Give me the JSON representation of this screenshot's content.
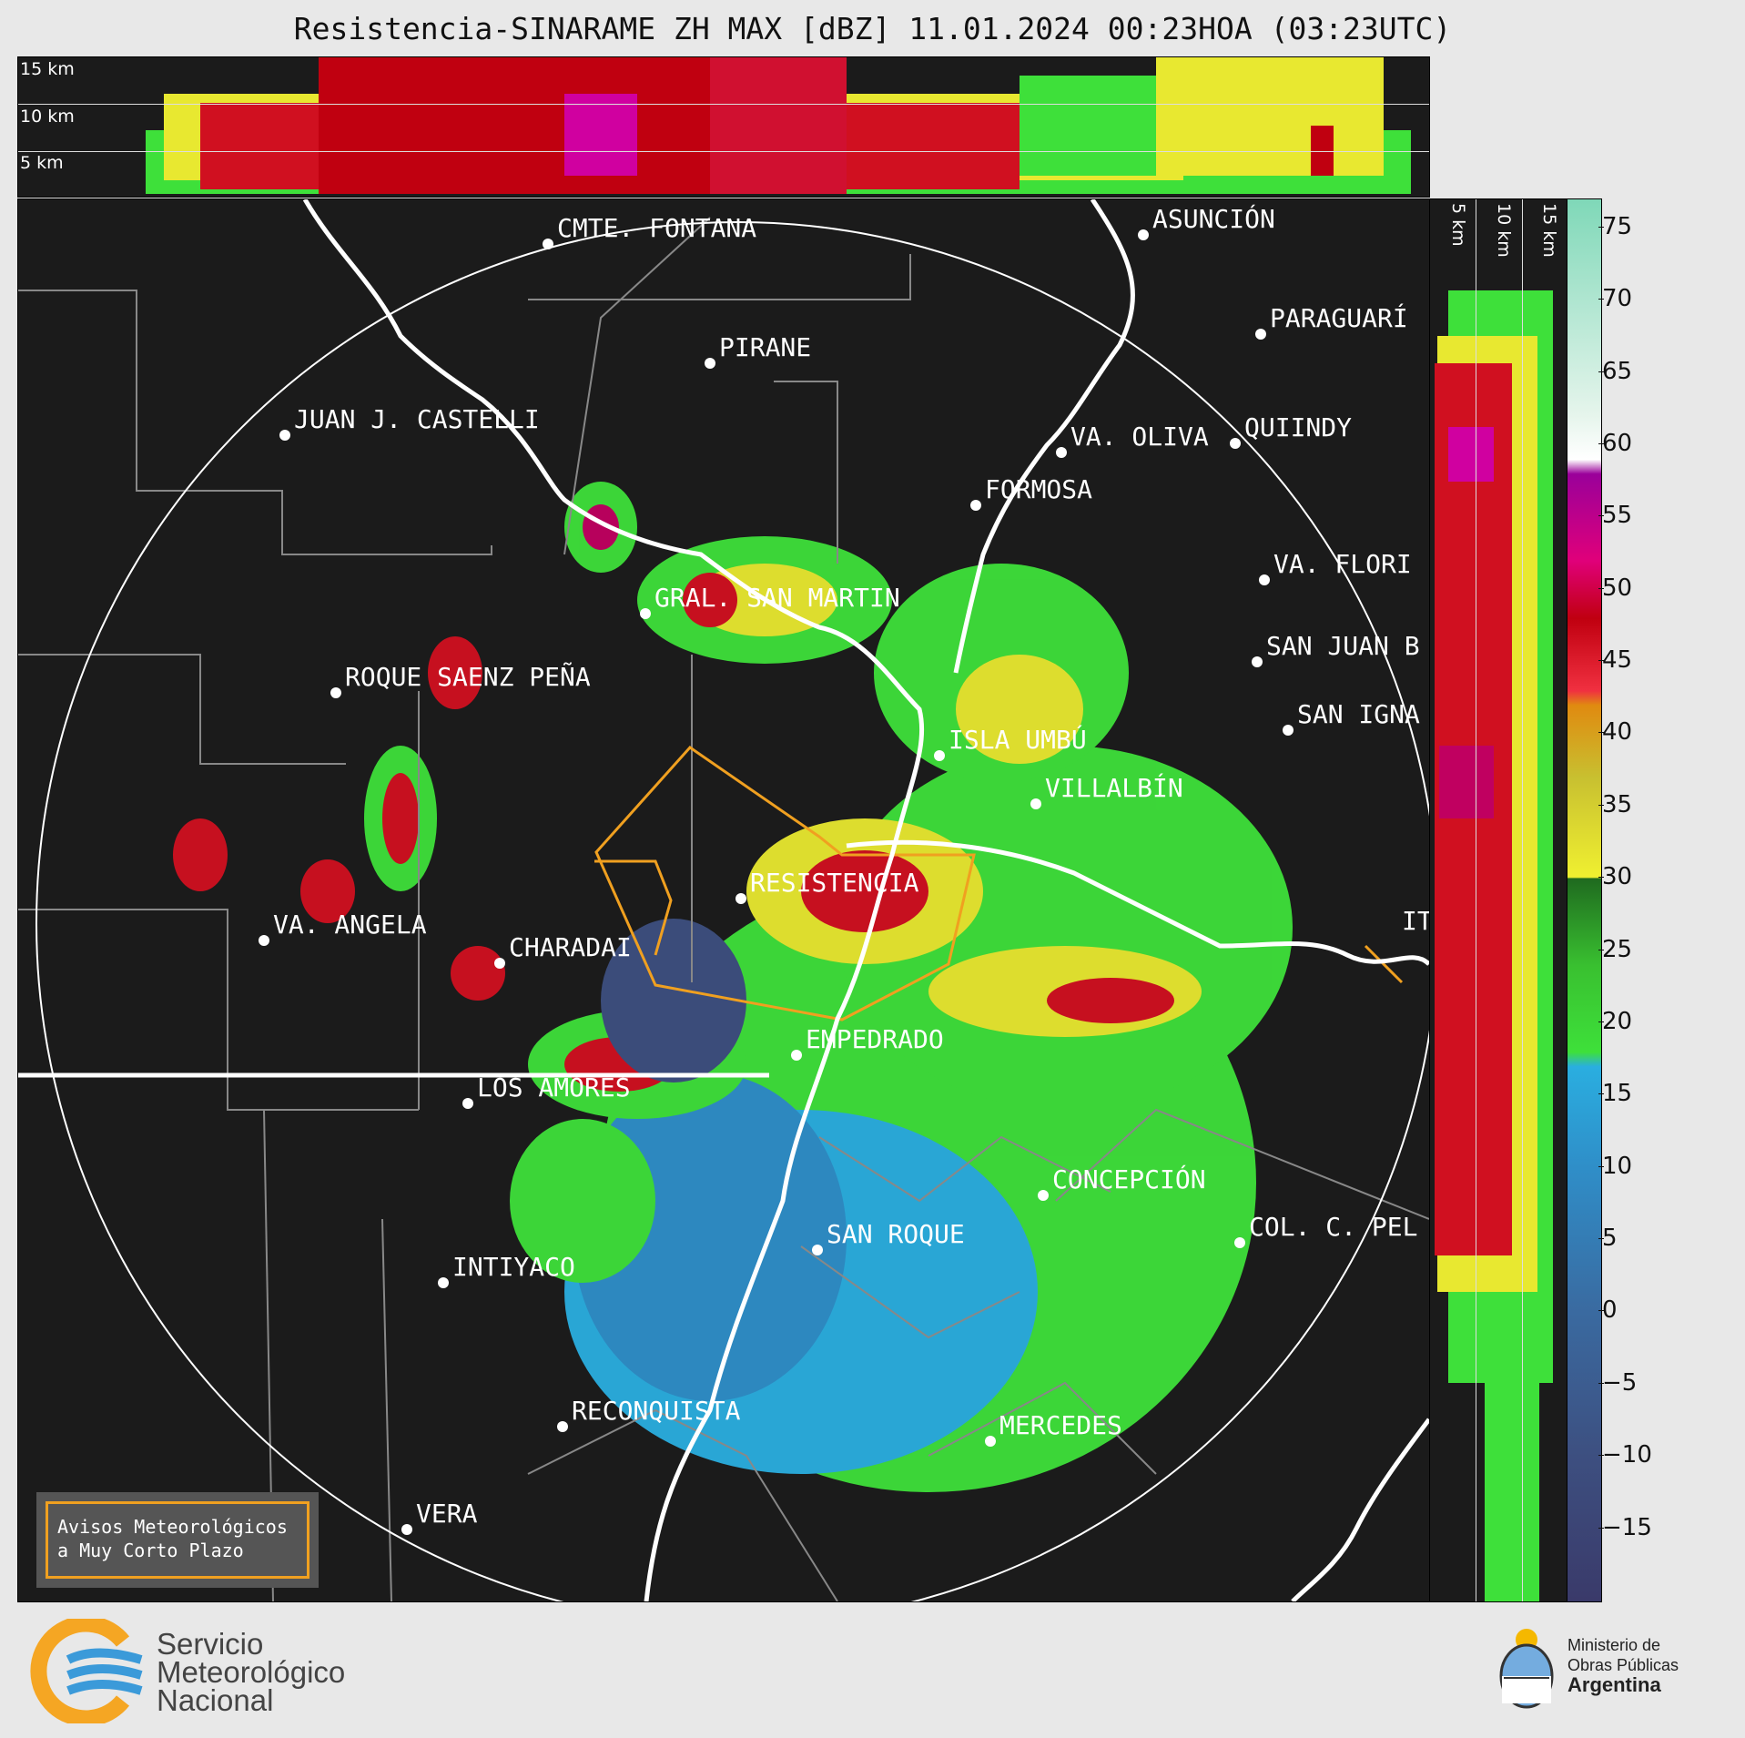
{
  "title": "Resistencia-SINARAME ZH MAX [dBZ] 11.01.2024 00:23HOA (03:23UTC)",
  "top_panel": {
    "labels": [
      "15 km",
      "10 km",
      "5 km"
    ]
  },
  "side_panel": {
    "labels": [
      "5 km",
      "10 km",
      "15 km"
    ]
  },
  "colorbar": {
    "unit": "dBZ",
    "ticks": [
      "75",
      "70",
      "65",
      "60",
      "55",
      "50",
      "45",
      "40",
      "35",
      "30",
      "25",
      "20",
      "15",
      "10",
      "5",
      "0",
      "−5",
      "−10",
      "−15"
    ],
    "tick_values": [
      75,
      70,
      65,
      60,
      55,
      50,
      45,
      40,
      35,
      30,
      25,
      20,
      15,
      10,
      5,
      0,
      -5,
      -10,
      -15
    ],
    "range": [
      -20,
      77
    ],
    "stops": [
      {
        "v": -20,
        "c": "#3a3a6a"
      },
      {
        "v": -10,
        "c": "#3d4f80"
      },
      {
        "v": 0,
        "c": "#3a6aa0"
      },
      {
        "v": 10,
        "c": "#2f8ec8"
      },
      {
        "v": 17,
        "c": "#2aaee0"
      },
      {
        "v": 18,
        "c": "#3ee03a"
      },
      {
        "v": 24,
        "c": "#39c030"
      },
      {
        "v": 30,
        "c": "#1f6a1f"
      },
      {
        "v": 30.1,
        "c": "#f0f030"
      },
      {
        "v": 37,
        "c": "#c8c030"
      },
      {
        "v": 42,
        "c": "#e08a10"
      },
      {
        "v": 43,
        "c": "#f03040"
      },
      {
        "v": 48,
        "c": "#c00010"
      },
      {
        "v": 52,
        "c": "#e0007a"
      },
      {
        "v": 58,
        "c": "#9a009a"
      },
      {
        "v": 59,
        "c": "#ffffff"
      },
      {
        "v": 62,
        "c": "#e6f5ec"
      },
      {
        "v": 77,
        "c": "#7fd8b8"
      }
    ]
  },
  "cities": [
    {
      "name": "CMTE. FONTANA"
    },
    {
      "name": "ASUNCIÓN"
    },
    {
      "name": "PARAGUARÍ"
    },
    {
      "name": "PIRANE"
    },
    {
      "name": "JUAN J. CASTELLI"
    },
    {
      "name": "VA. OLIVA"
    },
    {
      "name": "QUIINDY"
    },
    {
      "name": "FORMOSA"
    },
    {
      "name": "VA. FLORI"
    },
    {
      "name": "GRAL. SAN MARTIN"
    },
    {
      "name": "SAN JUAN B"
    },
    {
      "name": "ROQUE SAENZ PEÑA"
    },
    {
      "name": "SAN IGNA"
    },
    {
      "name": "ISLA UMBÚ"
    },
    {
      "name": "VILLALBÍN"
    },
    {
      "name": "RESISTENCIA"
    },
    {
      "name": "VA. ANGELA"
    },
    {
      "name": "CHARADAI"
    },
    {
      "name": "EMPEDRADO"
    },
    {
      "name": "LOS AMORES"
    },
    {
      "name": "CONCEPCIÓN"
    },
    {
      "name": "COL. C. PEL"
    },
    {
      "name": "SAN ROQUE"
    },
    {
      "name": "INTIYACO"
    },
    {
      "name": "RECONQUISTA"
    },
    {
      "name": "MERCEDES"
    },
    {
      "name": "VERA"
    },
    {
      "name": "IT"
    }
  ],
  "legend_box": {
    "line1": "Avisos Meteorológicos",
    "line2": "a Muy Corto Plazo",
    "color": "#f0a020"
  },
  "smn_logo": {
    "line1": "Servicio",
    "line2": "Meteorológico",
    "line3": "Nacional"
  },
  "ministry_logo": {
    "line1": "Ministerio de",
    "line2": "Obras Públicas",
    "line3": "Argentina"
  }
}
